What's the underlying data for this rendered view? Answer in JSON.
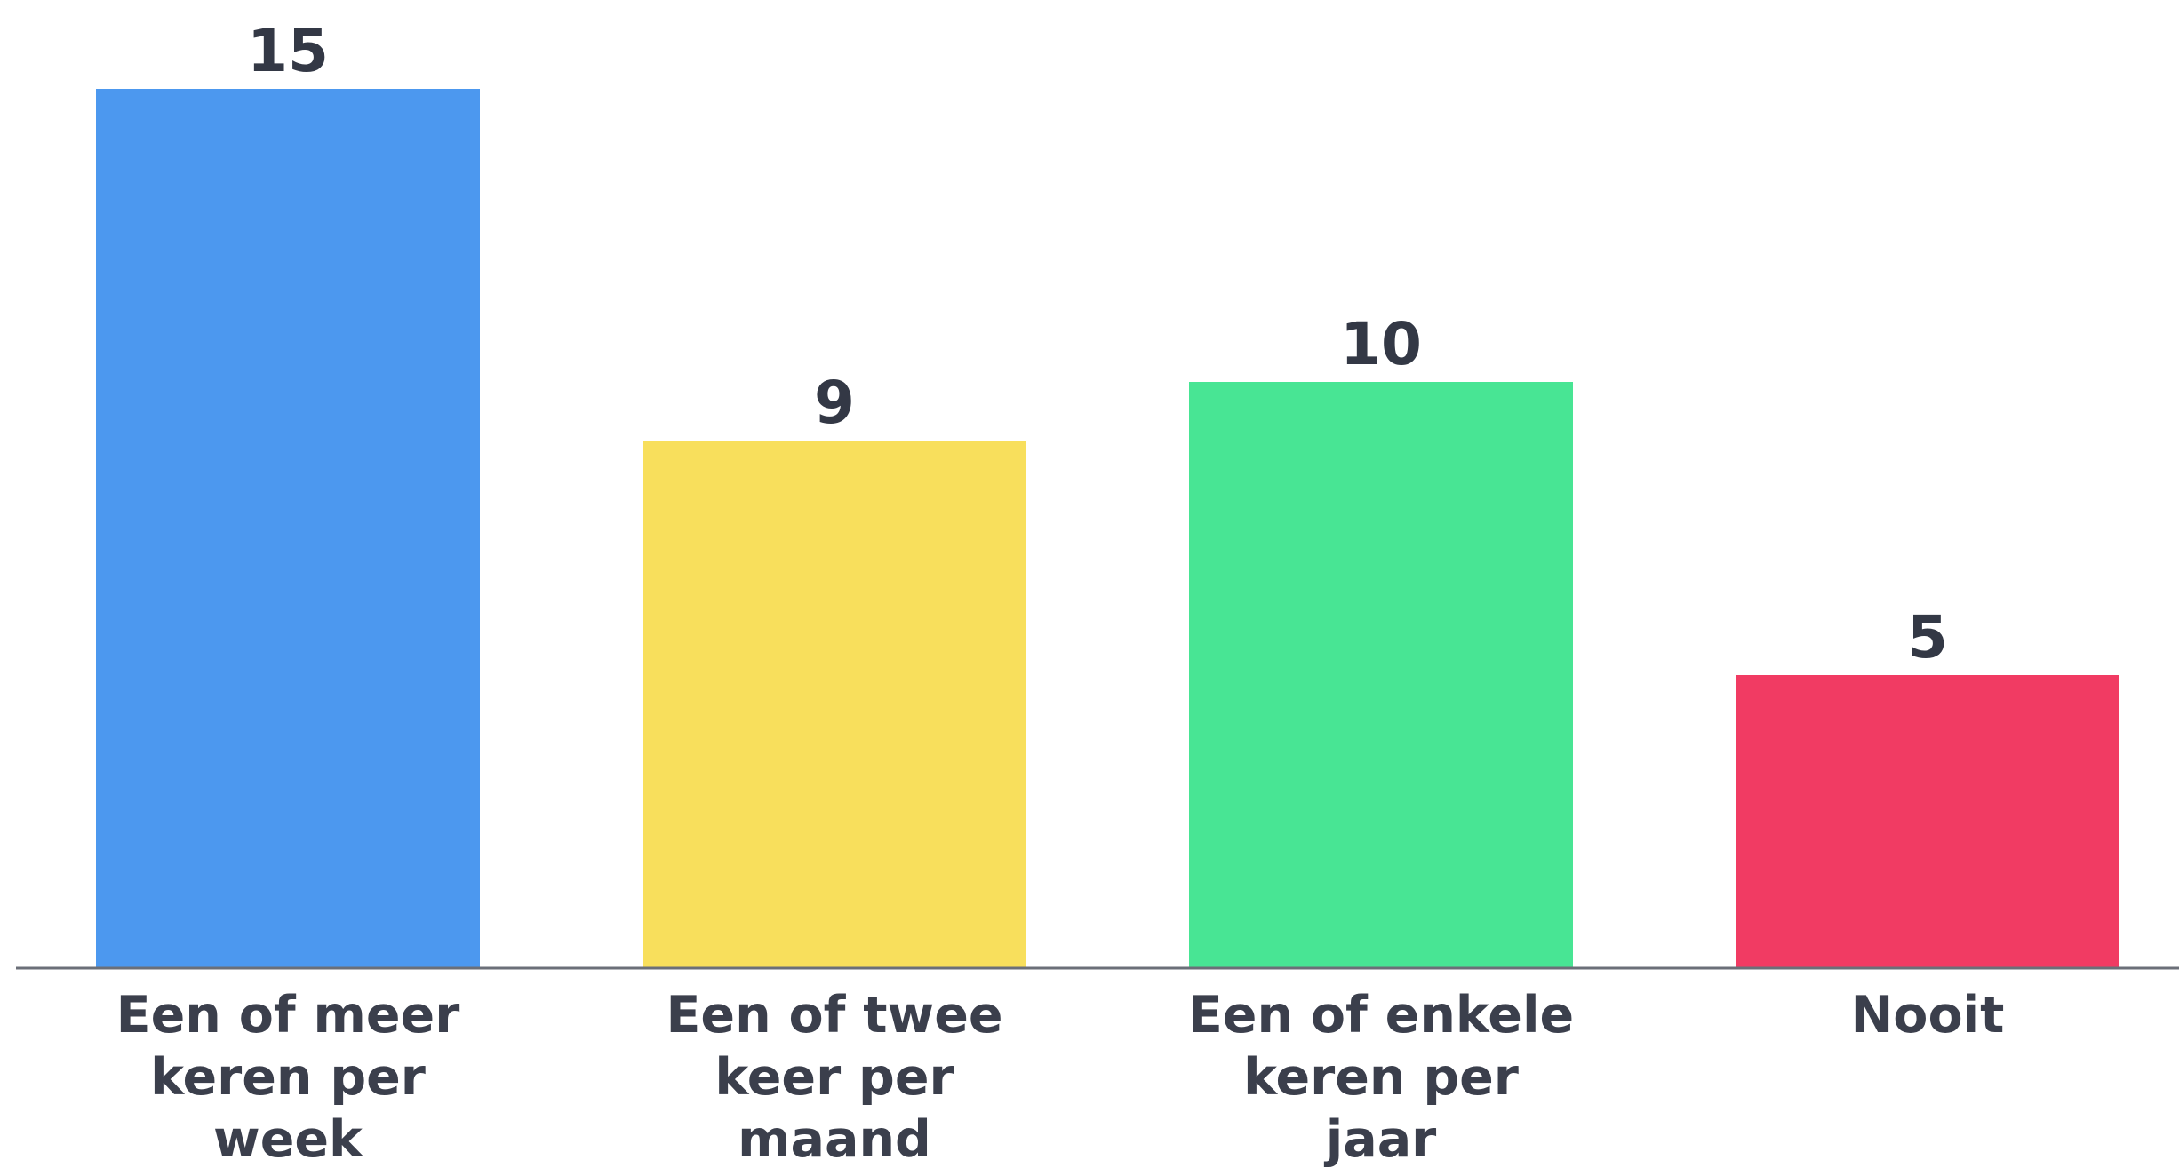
{
  "chart_data": {
    "type": "bar",
    "categories": [
      [
        "Een of meer",
        "keren per",
        "week"
      ],
      [
        "Een of twee",
        "keer per",
        "maand"
      ],
      [
        "Een of enkele",
        "keren per",
        "jaar"
      ],
      [
        "Nooit"
      ]
    ],
    "values": [
      15,
      9,
      10,
      5
    ],
    "colors": [
      "#4c98ef",
      "#f8df5c",
      "#48e594",
      "#f13b63"
    ],
    "value_labels": [
      "15",
      "9",
      "10",
      "5"
    ],
    "title": "",
    "xlabel": "",
    "ylabel": "",
    "ylim": [
      0,
      15
    ],
    "grid": false,
    "legend": false,
    "baseline_color": "#6b6f78"
  }
}
